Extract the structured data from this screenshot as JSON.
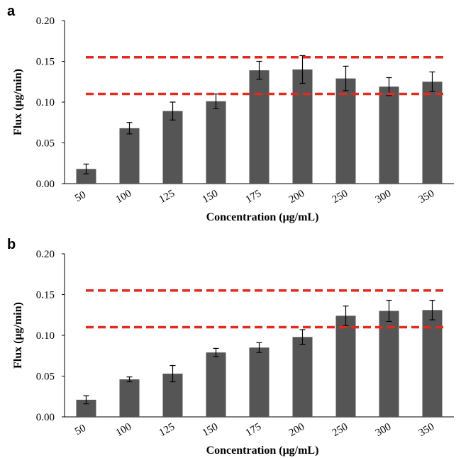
{
  "colors": {
    "bar": "#555555",
    "reference_line": "#e02b20",
    "axis": "#000000"
  },
  "chart_data": [
    {
      "panel_label": "a",
      "type": "bar",
      "title": "",
      "xlabel": "Concentration (μg/mL)",
      "ylabel": "Flux (μg/min)",
      "ylim": [
        0,
        0.2
      ],
      "yticks": [
        "0.00",
        "0.05",
        "0.10",
        "0.15",
        "0.20"
      ],
      "categories": [
        "50",
        "100",
        "125",
        "150",
        "175",
        "200",
        "250",
        "300",
        "350"
      ],
      "values": [
        0.018,
        0.068,
        0.089,
        0.101,
        0.139,
        0.14,
        0.129,
        0.119,
        0.125
      ],
      "errors": [
        0.006,
        0.007,
        0.011,
        0.009,
        0.011,
        0.017,
        0.015,
        0.011,
        0.012
      ],
      "reference_lines": [
        0.155,
        0.11
      ],
      "grid": false
    },
    {
      "panel_label": "b",
      "type": "bar",
      "title": "",
      "xlabel": "Concentration (μg/mL)",
      "ylabel": "Flux (μg/min)",
      "ylim": [
        0,
        0.2
      ],
      "yticks": [
        "0.00",
        "0.05",
        "0.10",
        "0.15",
        "0.20"
      ],
      "categories": [
        "50",
        "100",
        "125",
        "150",
        "175",
        "200",
        "250",
        "300",
        "350"
      ],
      "values": [
        0.021,
        0.046,
        0.053,
        0.079,
        0.085,
        0.098,
        0.124,
        0.13,
        0.131
      ],
      "errors": [
        0.005,
        0.003,
        0.01,
        0.005,
        0.006,
        0.009,
        0.012,
        0.013,
        0.012
      ],
      "reference_lines": [
        0.155,
        0.11
      ],
      "grid": false
    }
  ]
}
